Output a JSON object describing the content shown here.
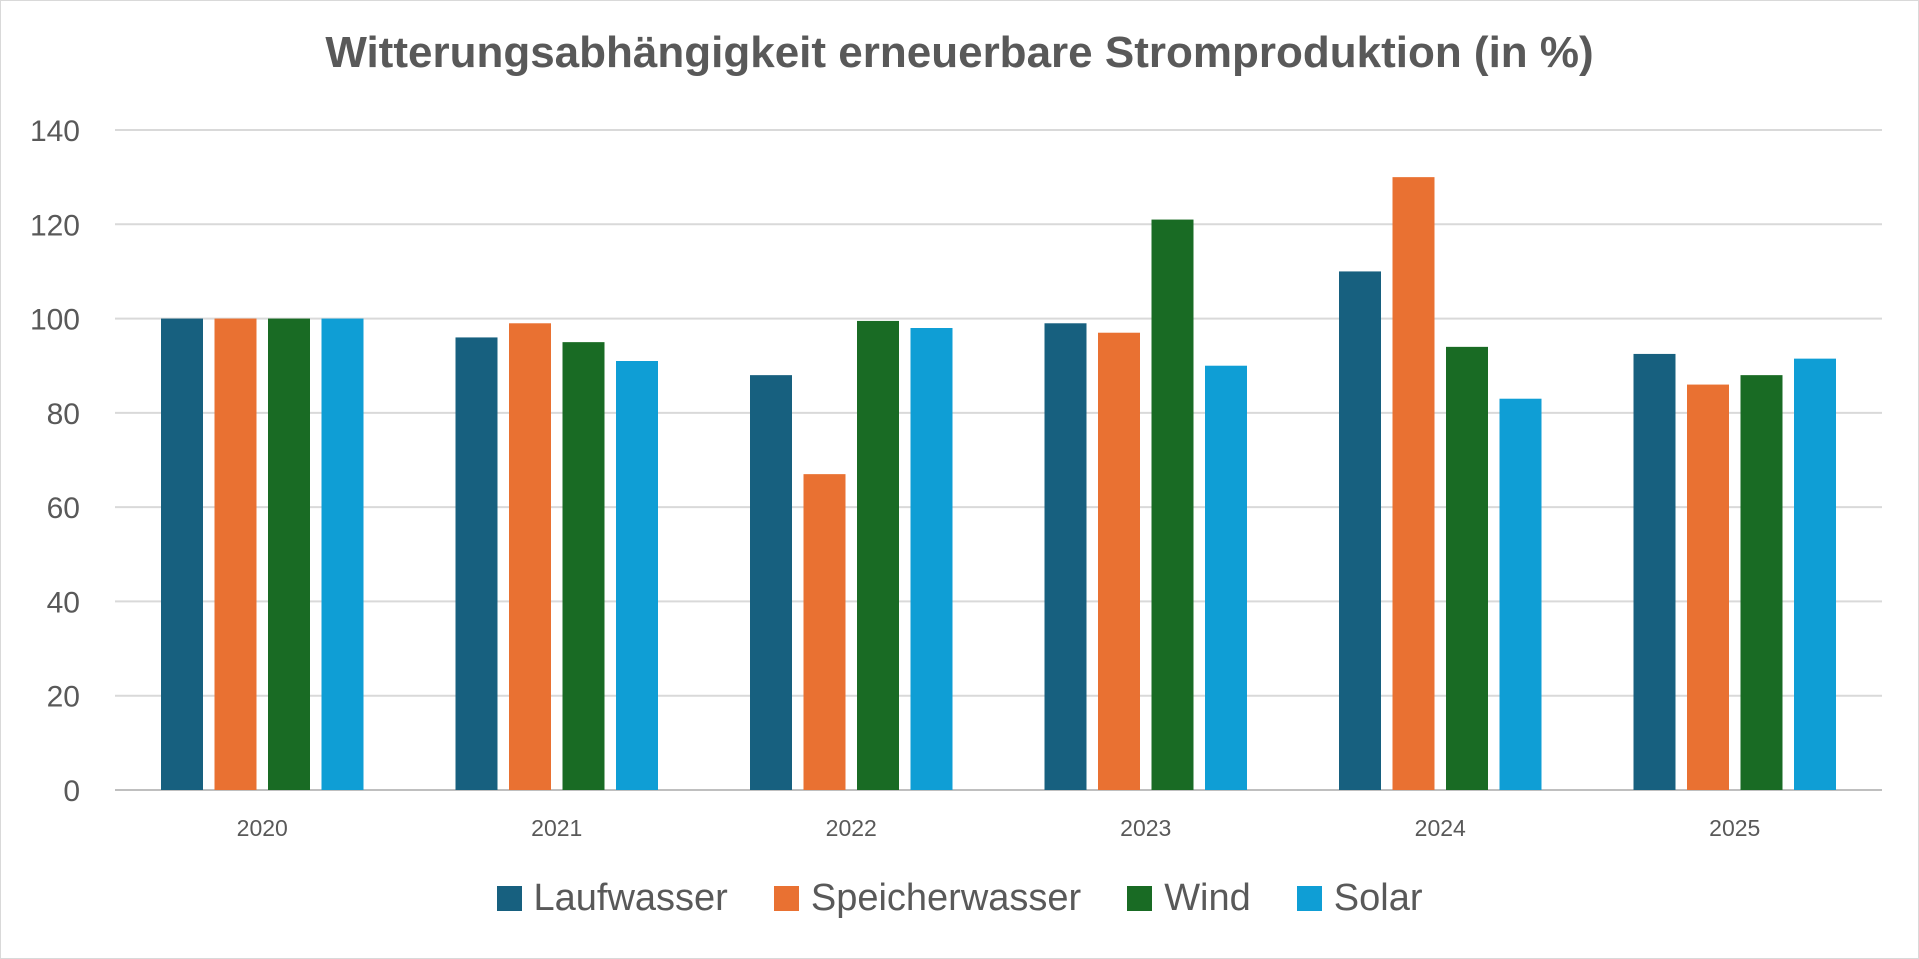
{
  "chart_data": {
    "type": "bar",
    "title": "Witterungsabhängigkeit erneuerbare Stromproduktion (in %)",
    "categories": [
      "2020",
      "2021",
      "2022",
      "2023",
      "2024",
      "2025"
    ],
    "series": [
      {
        "name": "Laufwasser",
        "color": "#17607f",
        "values": [
          100,
          96,
          88,
          99,
          110,
          92.5
        ]
      },
      {
        "name": "Speicherwasser",
        "color": "#e97132",
        "values": [
          100,
          99,
          67,
          97,
          130,
          86
        ]
      },
      {
        "name": "Wind",
        "color": "#196b24",
        "values": [
          100,
          95,
          99.5,
          121,
          94,
          88
        ]
      },
      {
        "name": "Solar",
        "color": "#0f9ed5",
        "values": [
          100,
          91,
          98,
          90,
          83,
          91.5
        ]
      }
    ],
    "ylim": [
      0,
      140
    ],
    "yticks": [
      "0",
      "20",
      "40",
      "60",
      "80",
      "100",
      "120",
      "140"
    ],
    "grid": true,
    "legend_position": "bottom"
  }
}
